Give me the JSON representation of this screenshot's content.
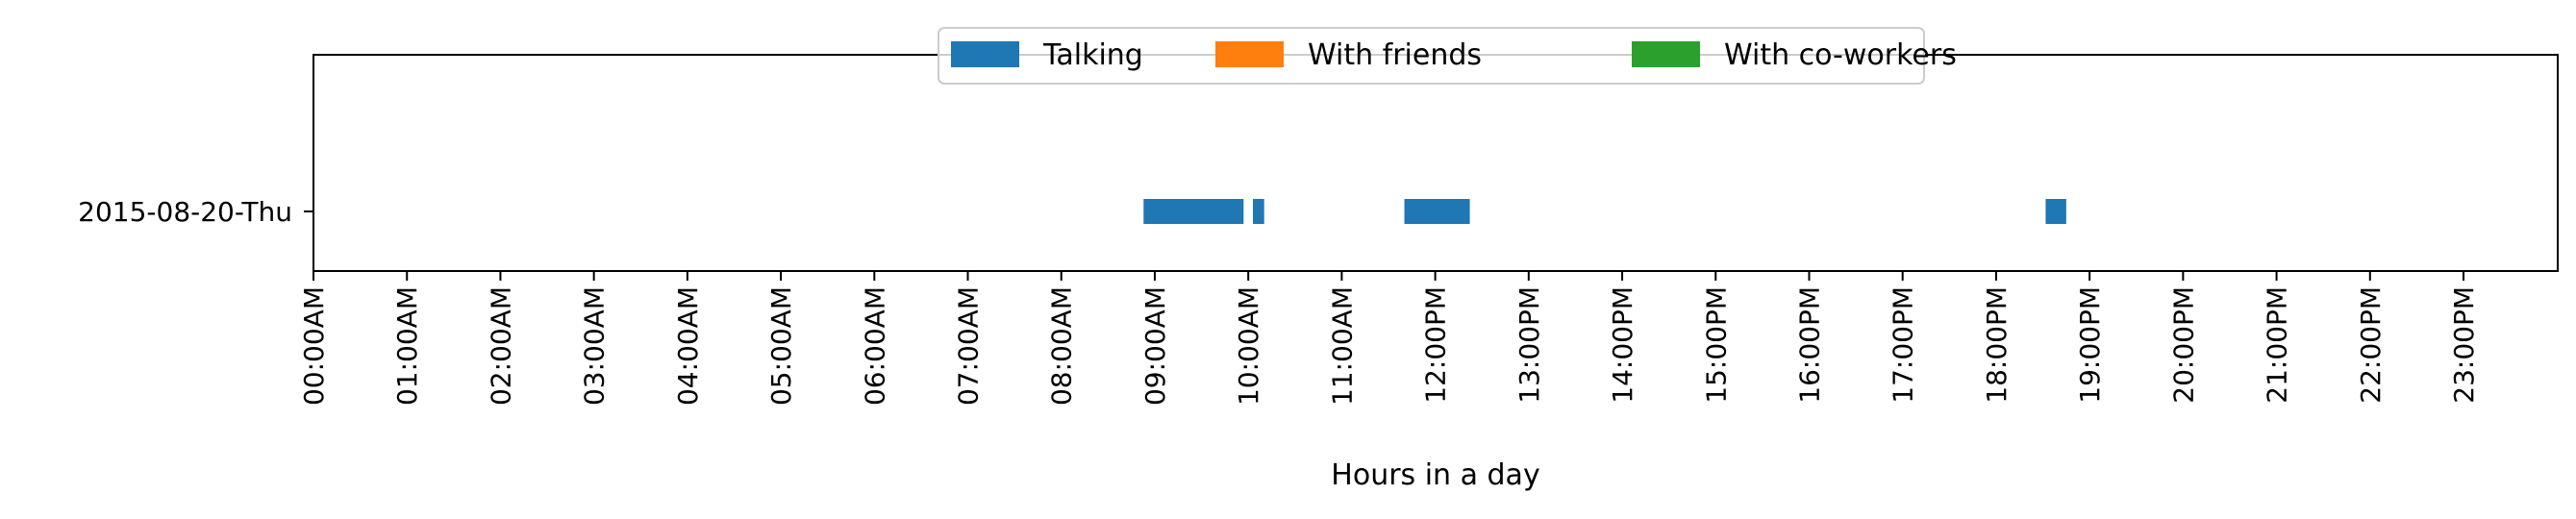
{
  "chart_data": {
    "type": "timeline",
    "xlabel": "Hours in a day",
    "xlim_hours": [
      0,
      24
    ],
    "x_tick_labels": [
      "00:00AM",
      "01:00AM",
      "02:00AM",
      "03:00AM",
      "04:00AM",
      "05:00AM",
      "06:00AM",
      "07:00AM",
      "08:00AM",
      "09:00AM",
      "10:00AM",
      "11:00AM",
      "12:00PM",
      "13:00PM",
      "14:00PM",
      "15:00PM",
      "16:00PM",
      "17:00PM",
      "18:00PM",
      "19:00PM",
      "20:00PM",
      "21:00PM",
      "22:00PM",
      "23:00PM"
    ],
    "y_categories": [
      "2015-08-20-Thu"
    ],
    "legend_location": "upper center",
    "grid": false,
    "series": [
      {
        "name": "Talking",
        "color": "#1f77b4",
        "intervals": [
          {
            "day": "2015-08-20-Thu",
            "start_hour": 8.88,
            "end_hour": 9.95
          },
          {
            "day": "2015-08-20-Thu",
            "start_hour": 10.05,
            "end_hour": 10.17
          },
          {
            "day": "2015-08-20-Thu",
            "start_hour": 11.67,
            "end_hour": 12.37
          },
          {
            "day": "2015-08-20-Thu",
            "start_hour": 18.53,
            "end_hour": 18.75
          }
        ]
      },
      {
        "name": "With friends",
        "color": "#ff7f0e",
        "intervals": []
      },
      {
        "name": "With co-workers",
        "color": "#2ca02c",
        "intervals": []
      }
    ]
  }
}
